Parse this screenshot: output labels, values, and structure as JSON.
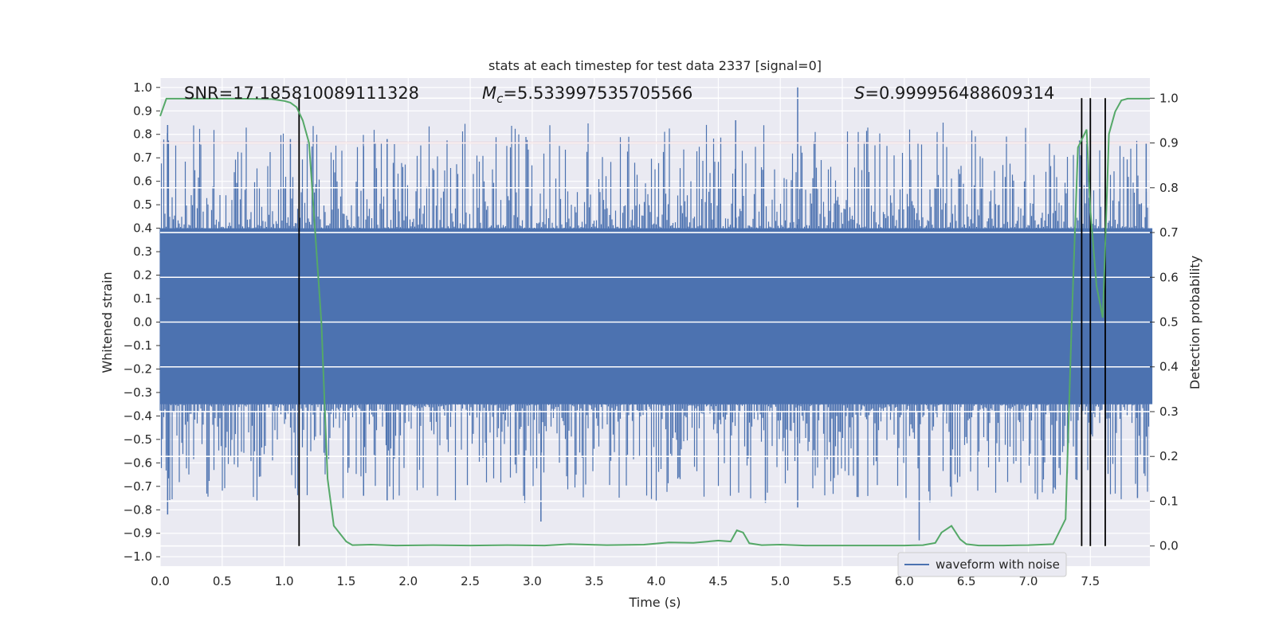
{
  "chart_data": {
    "type": "line",
    "title": "stats at each timestep for test data 2337 [signal=0]",
    "xlabel": "Time (s)",
    "ylabel": "Whitened strain",
    "y2label": "Detection probability",
    "xlim": [
      0.0,
      7.98
    ],
    "ylim": [
      -1.04,
      1.04
    ],
    "y2lim": [
      -0.045,
      1.045
    ],
    "xticks": [
      "0.0",
      "0.5",
      "1.0",
      "1.5",
      "2.0",
      "2.5",
      "3.0",
      "3.5",
      "4.0",
      "4.5",
      "5.0",
      "5.5",
      "6.0",
      "6.5",
      "7.0",
      "7.5"
    ],
    "yticks": [
      "1.0",
      "0.9",
      "0.8",
      "0.7",
      "0.6",
      "0.5",
      "0.4",
      "0.3",
      "0.2",
      "0.1",
      "0.0",
      "−0.1",
      "−0.2",
      "−0.3",
      "−0.4",
      "−0.5",
      "−0.6",
      "−0.7",
      "−0.8",
      "−0.9",
      "−1.0"
    ],
    "y2ticks": [
      "1.0",
      "0.9",
      "0.8",
      "0.7",
      "0.6",
      "0.5",
      "0.4",
      "0.3",
      "0.2",
      "0.1",
      "0.0"
    ],
    "annotations": {
      "snr": "SNR=17.185810089111328",
      "mc_symbol": "M",
      "mc_sub": "c",
      "mc_value": "=5.533997535705566",
      "s_symbol": "S",
      "s_value": "=0.999956488609314"
    },
    "threshold": 0.9,
    "legend": [
      {
        "label": "waveform with noise",
        "color": "#4c72b0",
        "location": "lower right"
      }
    ],
    "detection_times": [
      1.12,
      7.43,
      7.5,
      7.62
    ],
    "series": [
      {
        "name": "waveform with noise",
        "axis": "left",
        "color": "#4c72b0",
        "description": "dense whitened noise, core band roughly -0.35..0.4, spikes to 1.0 at t=5.14 and -0.93 at t=6.12",
        "envelope_x": [
          0.0,
          8.0
        ],
        "core_band": [
          -0.35,
          0.4
        ],
        "peaks": [
          {
            "x": 0.06,
            "y": 0.84
          },
          {
            "x": 0.06,
            "y": -0.82
          },
          {
            "x": 1.05,
            "y": 0.78
          },
          {
            "x": 1.64,
            "y": -0.74
          },
          {
            "x": 1.64,
            "y": 0.75
          },
          {
            "x": 1.83,
            "y": 0.78
          },
          {
            "x": 1.83,
            "y": -0.76
          },
          {
            "x": 3.07,
            "y": -0.85
          },
          {
            "x": 4.64,
            "y": 0.86
          },
          {
            "x": 4.88,
            "y": -0.77
          },
          {
            "x": 5.14,
            "y": 1.0
          },
          {
            "x": 5.14,
            "y": -0.79
          },
          {
            "x": 6.12,
            "y": -0.93
          },
          {
            "x": 7.5,
            "y": 0.87
          },
          {
            "x": 7.88,
            "y": -0.75
          },
          {
            "x": 7.95,
            "y": 0.76
          }
        ]
      },
      {
        "name": "Detection probability",
        "axis": "right",
        "color": "#55a868",
        "x": [
          0.0,
          0.05,
          0.3,
          0.6,
          0.9,
          1.0,
          1.05,
          1.1,
          1.15,
          1.2,
          1.3,
          1.35,
          1.4,
          1.5,
          1.55,
          1.7,
          1.9,
          2.2,
          2.5,
          2.8,
          3.1,
          3.3,
          3.6,
          3.9,
          4.1,
          4.3,
          4.5,
          4.6,
          4.65,
          4.7,
          4.75,
          4.85,
          5.0,
          5.2,
          5.5,
          6.0,
          6.15,
          6.25,
          6.3,
          6.38,
          6.45,
          6.5,
          6.6,
          6.8,
          7.0,
          7.2,
          7.3,
          7.35,
          7.4,
          7.47,
          7.5,
          7.55,
          7.6,
          7.65,
          7.7,
          7.75,
          7.8,
          7.85,
          7.98
        ],
        "y": [
          0.96,
          0.999,
          0.999,
          0.999,
          0.998,
          0.994,
          0.99,
          0.98,
          0.95,
          0.9,
          0.5,
          0.15,
          0.045,
          0.01,
          0.002,
          0.003,
          0.001,
          0.002,
          0.001,
          0.002,
          0.001,
          0.004,
          0.002,
          0.003,
          0.008,
          0.007,
          0.012,
          0.01,
          0.035,
          0.03,
          0.006,
          0.002,
          0.003,
          0.001,
          0.001,
          0.001,
          0.002,
          0.007,
          0.03,
          0.045,
          0.015,
          0.004,
          0.001,
          0.001,
          0.002,
          0.004,
          0.06,
          0.5,
          0.89,
          0.93,
          0.75,
          0.58,
          0.51,
          0.92,
          0.97,
          0.995,
          0.999,
          0.999,
          0.999
        ]
      }
    ]
  }
}
